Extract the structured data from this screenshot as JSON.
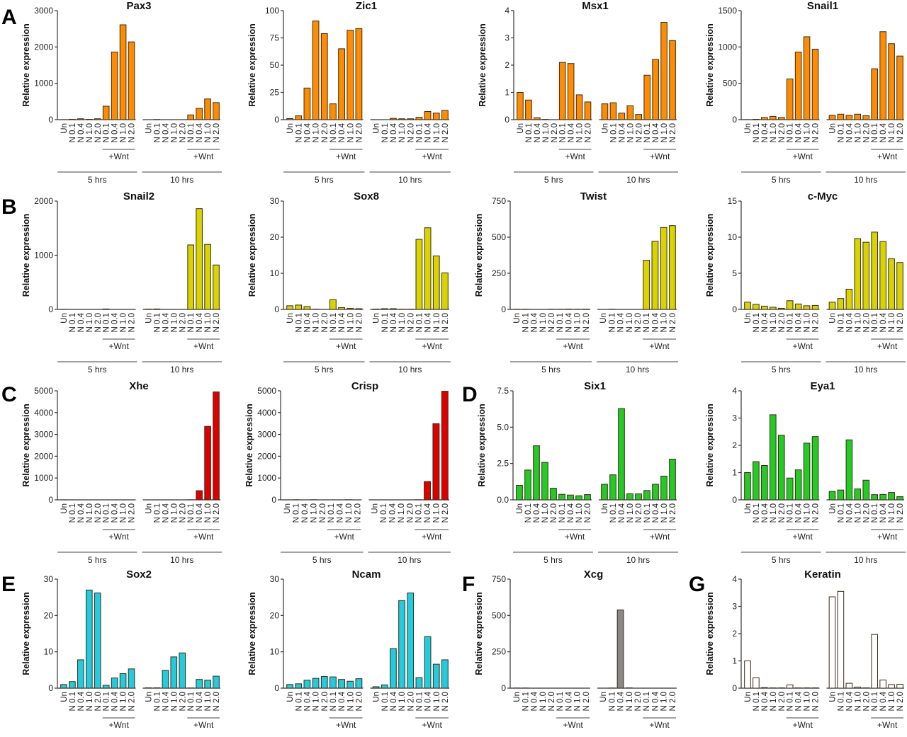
{
  "figure": {
    "panel_letters": [
      "A",
      "B",
      "C",
      "D",
      "E",
      "F",
      "G"
    ]
  },
  "labels": {
    "ylabel": "Relative expression",
    "wnt": "+Wnt",
    "group_5h": "5 hrs",
    "group_10h": "10 hrs"
  },
  "chart_data": [
    {
      "type": "bar",
      "panel": "A",
      "title": "Pax3",
      "ylabel": "Relative expression",
      "color": "#ff8c00",
      "ylim": [
        0,
        3000
      ],
      "yticks": [
        "0",
        "1000",
        "2000",
        "3000"
      ],
      "ytick_values": [
        0,
        1000,
        2000,
        3000
      ],
      "categories": [
        "Un",
        "N 0.1",
        "N 0.4",
        "N 1.0",
        "N 2.0",
        "N 0.1",
        "N 0.4",
        "N 1.0",
        "N 2.0",
        "Un",
        "N 0.1",
        "N 0.4",
        "N 1.0",
        "N 2.0",
        "N 0.1",
        "N 0.4",
        "N 1.0",
        "N 2.0"
      ],
      "groups": [
        "5 hrs",
        "10 hrs"
      ],
      "wnt_indices": [
        5,
        6,
        7,
        8,
        14,
        15,
        16,
        17
      ],
      "values": [
        1,
        10,
        25,
        10,
        25,
        370,
        1860,
        2610,
        2140,
        0,
        5,
        0,
        0,
        0,
        130,
        310,
        570,
        470
      ]
    },
    {
      "type": "bar",
      "panel": "",
      "title": "Zic1",
      "ylabel": "Relative expression",
      "color": "#ff8c00",
      "ylim": [
        0,
        100
      ],
      "yticks": [
        "0",
        "25",
        "50",
        "75",
        "100"
      ],
      "ytick_values": [
        0,
        25,
        50,
        75,
        100
      ],
      "categories": [
        "Un",
        "N 0.1",
        "N 0.4",
        "N 1.0",
        "N 2.0",
        "N 0.1",
        "N 0.4",
        "N 1.0",
        "N 2.0",
        "Un",
        "N 0.1",
        "N 0.4",
        "N 1.0",
        "N 2.0",
        "N 0.1",
        "N 0.4",
        "N 1.0",
        "N 2.0"
      ],
      "groups": [
        "5 hrs",
        "10 hrs"
      ],
      "wnt_indices": [
        5,
        6,
        7,
        8,
        14,
        15,
        16,
        17
      ],
      "values": [
        1,
        3.5,
        29,
        90.5,
        79,
        14.5,
        65,
        82,
        83.5,
        0,
        0,
        1.2,
        0.8,
        0.8,
        2.2,
        7.5,
        6,
        8.5
      ]
    },
    {
      "type": "bar",
      "panel": "",
      "title": "Msx1",
      "ylabel": "Relative expression",
      "color": "#ff8c00",
      "ylim": [
        0,
        4
      ],
      "yticks": [
        "0",
        "1",
        "2",
        "3",
        "4"
      ],
      "ytick_values": [
        0,
        1,
        2,
        3,
        4
      ],
      "categories": [
        "Un",
        "N 0.1",
        "N 0.4",
        "N 1.0",
        "N 2.0",
        "N 0.1",
        "N 0.4",
        "N 1.0",
        "N 2.0",
        "Un",
        "N 0.1",
        "N 0.4",
        "N 1.0",
        "N 2.0",
        "N 0.1",
        "N 0.4",
        "N 1.0",
        "N 2.0"
      ],
      "groups": [
        "5 hrs",
        "10 hrs"
      ],
      "wnt_indices": [
        5,
        6,
        7,
        8,
        14,
        15,
        16,
        17
      ],
      "values": [
        1.0,
        0.72,
        0.07,
        0.01,
        0,
        2.1,
        2.06,
        0.91,
        0.65,
        0.58,
        0.62,
        0.24,
        0.51,
        0.19,
        1.63,
        2.21,
        3.57,
        2.9
      ]
    },
    {
      "type": "bar",
      "panel": "",
      "title": "Snail1",
      "ylabel": "Relative expression",
      "color": "#ff8c00",
      "ylim": [
        0,
        1500
      ],
      "yticks": [
        "0",
        "500",
        "1000",
        "1500"
      ],
      "ytick_values": [
        0,
        500,
        1000,
        1500
      ],
      "categories": [
        "Un",
        "N 0.1",
        "N 0.4",
        "N 1.0",
        "N 2.0",
        "N 0.1",
        "N 0.4",
        "N 1.0",
        "N 2.0",
        "Un",
        "N 0.1",
        "N 0.4",
        "N 1.0",
        "N 2.0",
        "N 0.1",
        "N 0.4",
        "N 1.0",
        "N 2.0"
      ],
      "groups": [
        "5 hrs",
        "10 hrs"
      ],
      "wnt_indices": [
        5,
        6,
        7,
        8,
        14,
        15,
        16,
        17
      ],
      "values": [
        1,
        5,
        30,
        45,
        30,
        560,
        930,
        1140,
        970,
        60,
        75,
        60,
        75,
        55,
        700,
        1210,
        1045,
        875
      ]
    },
    {
      "type": "bar",
      "panel": "B",
      "title": "Snail2",
      "ylabel": "Relative expression",
      "color": "#d9d400",
      "ylim": [
        0,
        2000
      ],
      "yticks": [
        "0",
        "1000",
        "2000"
      ],
      "ytick_values": [
        0,
        1000,
        2000
      ],
      "categories": [
        "Un",
        "N 0.1",
        "N 0.4",
        "N 1.0",
        "N 2.0",
        "N 0.1",
        "N 0.4",
        "N 1.0",
        "N 2.0",
        "Un",
        "N 0.1",
        "N 0.4",
        "N 1.0",
        "N 2.0",
        "N 0.1",
        "N 0.4",
        "N 1.0",
        "N 2.0"
      ],
      "groups": [
        "5 hrs",
        "10 hrs"
      ],
      "wnt_indices": [
        5,
        6,
        7,
        8,
        14,
        15,
        16,
        17
      ],
      "values": [
        1,
        0,
        0,
        0,
        0,
        8,
        0,
        0,
        0,
        5,
        8,
        0,
        0,
        0,
        1190,
        1860,
        1200,
        820
      ]
    },
    {
      "type": "bar",
      "panel": "",
      "title": "Sox8",
      "ylabel": "Relative expression",
      "color": "#d9d400",
      "ylim": [
        0,
        30
      ],
      "yticks": [
        "0",
        "10",
        "20",
        "30"
      ],
      "ytick_values": [
        0,
        10,
        20,
        30
      ],
      "categories": [
        "Un",
        "N 0.1",
        "N 0.4",
        "N 1.0",
        "N 2.0",
        "N 0.1",
        "N 0.4",
        "N 1.0",
        "N 2.0",
        "Un",
        "N 0.1",
        "N 0.4",
        "N 1.0",
        "N 2.0",
        "N 0.1",
        "N 0.4",
        "N 1.0",
        "N 2.0"
      ],
      "groups": [
        "5 hrs",
        "10 hrs"
      ],
      "wnt_indices": [
        5,
        6,
        7,
        8,
        14,
        15,
        16,
        17
      ],
      "values": [
        1.0,
        1.2,
        0.8,
        0.05,
        0,
        2.7,
        0.5,
        0.3,
        0.2,
        0.1,
        0.2,
        0.2,
        0.05,
        0.05,
        19.4,
        22.6,
        14.8,
        10.1
      ]
    },
    {
      "type": "bar",
      "panel": "",
      "title": "Twist",
      "ylabel": "Relative expression",
      "color": "#d9d400",
      "ylim": [
        0,
        750
      ],
      "yticks": [
        "0",
        "250",
        "500",
        "750"
      ],
      "ytick_values": [
        0,
        250,
        500,
        750
      ],
      "categories": [
        "Un",
        "N 0.1",
        "N 0.4",
        "N 1.0",
        "N 2.0",
        "N 0.1",
        "N 0.4",
        "N 1.0",
        "N 2.0",
        "Un",
        "N 0.1",
        "N 0.4",
        "N 1.0",
        "N 2.0",
        "N 0.1",
        "N 0.4",
        "N 1.0",
        "N 2.0"
      ],
      "groups": [
        "5 hrs",
        "10 hrs"
      ],
      "wnt_indices": [
        5,
        6,
        7,
        8,
        14,
        15,
        16,
        17
      ],
      "values": [
        1,
        1,
        0,
        0,
        1,
        1,
        2,
        1,
        2,
        0,
        1,
        0,
        0,
        0,
        340,
        472,
        567,
        580
      ]
    },
    {
      "type": "bar",
      "panel": "",
      "title": "c-Myc",
      "ylabel": "Relative expression",
      "color": "#d9d400",
      "ylim": [
        0,
        15
      ],
      "yticks": [
        "0",
        "5",
        "10",
        "15"
      ],
      "ytick_values": [
        0,
        5,
        10,
        15
      ],
      "categories": [
        "Un",
        "N 0.1",
        "N 0.4",
        "N 1.0",
        "N 2.0",
        "N 0.1",
        "N 0.4",
        "N 1.0",
        "N 2.0",
        "Un",
        "N 0.1",
        "N 0.4",
        "N 1.0",
        "N 2.0",
        "N 0.1",
        "N 0.4",
        "N 1.0",
        "N 2.0"
      ],
      "groups": [
        "5 hrs",
        "10 hrs"
      ],
      "wnt_indices": [
        5,
        6,
        7,
        8,
        14,
        15,
        16,
        17
      ],
      "values": [
        1.0,
        0.7,
        0.45,
        0.3,
        0.15,
        1.2,
        0.75,
        0.5,
        0.55,
        1.0,
        1.5,
        2.8,
        9.8,
        9.3,
        10.7,
        9.4,
        7.0,
        6.5
      ]
    },
    {
      "type": "bar",
      "panel": "C",
      "title": "Xhe",
      "ylabel": "Relative expression",
      "color": "#dd0000",
      "ylim": [
        0,
        5000
      ],
      "yticks": [
        "0",
        "1000",
        "2000",
        "3000",
        "4000",
        "5000"
      ],
      "ytick_values": [
        0,
        1000,
        2000,
        3000,
        4000,
        5000
      ],
      "categories": [
        "Un",
        "N 0.1",
        "N 0.4",
        "N 1.0",
        "N 2.0",
        "N 0.1",
        "N 0.4",
        "N 1.0",
        "N 2.0",
        "Un",
        "N 0.1",
        "N 0.4",
        "N 1.0",
        "N 2.0",
        "N 0.1",
        "N 0.4",
        "N 1.0",
        "N 2.0"
      ],
      "groups": [
        "5 hrs",
        "10 hrs"
      ],
      "wnt_indices": [
        5,
        6,
        7,
        8,
        14,
        15,
        16,
        17
      ],
      "values": [
        1,
        0,
        0,
        0,
        0,
        0,
        0,
        0,
        0,
        0,
        0,
        0,
        0,
        0,
        5,
        420,
        3370,
        4950
      ]
    },
    {
      "type": "bar",
      "panel": "",
      "title": "Crisp",
      "ylabel": "Relative expression",
      "color": "#dd0000",
      "ylim": [
        0,
        5000
      ],
      "yticks": [
        "0",
        "1000",
        "2000",
        "3000",
        "4000",
        "5000"
      ],
      "ytick_values": [
        0,
        1000,
        2000,
        3000,
        4000,
        5000
      ],
      "categories": [
        "Un",
        "N 0.1",
        "N 0.4",
        "N 1.0",
        "N 2.0",
        "N 0.1",
        "N 0.4",
        "N 1.0",
        "N 2.0",
        "Un",
        "N 0.1",
        "N 0.4",
        "N 1.0",
        "N 2.0",
        "N 0.1",
        "N 0.4",
        "N 1.0",
        "N 2.0"
      ],
      "groups": [
        "5 hrs",
        "10 hrs"
      ],
      "wnt_indices": [
        5,
        6,
        7,
        8,
        14,
        15,
        16,
        17
      ],
      "values": [
        1,
        5,
        0,
        5,
        0,
        0,
        0,
        5,
        0,
        0,
        0,
        0,
        0,
        0,
        5,
        840,
        3490,
        4980
      ]
    },
    {
      "type": "bar",
      "panel": "D",
      "title": "Six1",
      "ylabel": "Relative expression",
      "color": "#22cc22",
      "ylim": [
        0,
        7.5
      ],
      "yticks": [
        "0.0",
        "2.5",
        "5.0",
        "7.5"
      ],
      "ytick_values": [
        0,
        2.5,
        5,
        7.5
      ],
      "categories": [
        "Un",
        "N 0.1",
        "N 0.4",
        "N 1.0",
        "N 2.0",
        "N 0.1",
        "N 0.4",
        "N 1.0",
        "N 2.0",
        "Un",
        "N 0.1",
        "N 0.4",
        "N 1.0",
        "N 2.0",
        "N 0.1",
        "N 0.4",
        "N 1.0",
        "N 2.0"
      ],
      "groups": [
        "5 hrs",
        "10 hrs"
      ],
      "wnt_indices": [
        5,
        6,
        7,
        8,
        14,
        15,
        16,
        17
      ],
      "values": [
        1.0,
        2.05,
        3.72,
        2.58,
        0.8,
        0.38,
        0.33,
        0.28,
        0.36,
        1.07,
        1.72,
        6.28,
        0.42,
        0.41,
        0.64,
        1.07,
        1.63,
        2.8
      ]
    },
    {
      "type": "bar",
      "panel": "",
      "title": "Eya1",
      "ylabel": "Relative expression",
      "color": "#22cc22",
      "ylim": [
        0,
        4
      ],
      "yticks": [
        "0",
        "1",
        "2",
        "3",
        "4"
      ],
      "ytick_values": [
        0,
        1,
        2,
        3,
        4
      ],
      "categories": [
        "Un",
        "N 0.1",
        "N 0.4",
        "N 1.0",
        "N 2.0",
        "N 0.1",
        "N 0.4",
        "N 1.0",
        "N 2.0",
        "Un",
        "N 0.1",
        "N 0.4",
        "N 1.0",
        "N 2.0",
        "N 0.1",
        "N 0.4",
        "N 1.0",
        "N 2.0"
      ],
      "groups": [
        "5 hrs",
        "10 hrs"
      ],
      "wnt_indices": [
        5,
        6,
        7,
        8,
        14,
        15,
        16,
        17
      ],
      "values": [
        1.0,
        1.4,
        1.26,
        3.12,
        2.37,
        0.8,
        1.1,
        2.08,
        2.32,
        0.31,
        0.36,
        2.2,
        0.4,
        0.72,
        0.19,
        0.2,
        0.27,
        0.12
      ]
    },
    {
      "type": "bar",
      "panel": "E",
      "title": "Sox2",
      "ylabel": "Relative expression",
      "color": "#22ccdd",
      "ylim": [
        0,
        30
      ],
      "yticks": [
        "0",
        "10",
        "20",
        "30"
      ],
      "ytick_values": [
        0,
        10,
        20,
        30
      ],
      "categories": [
        "Un",
        "N 0.1",
        "N 0.4",
        "N 1.0",
        "N 2.0",
        "N 0.1",
        "N 0.4",
        "N 1.0",
        "N 2.0",
        "Un",
        "N 0.1",
        "N 0.4",
        "N 1.0",
        "N 2.0",
        "N 0.1",
        "N 0.4",
        "N 1.0",
        "N 2.0"
      ],
      "groups": [
        "5 hrs",
        "10 hrs"
      ],
      "wnt_indices": [
        5,
        6,
        7,
        8,
        14,
        15,
        16,
        17
      ],
      "values": [
        1.0,
        1.8,
        7.8,
        27.0,
        26.2,
        0.8,
        2.8,
        4.0,
        5.3,
        0.1,
        0.1,
        4.9,
        8.6,
        9.7,
        0.05,
        2.4,
        2.2,
        3.3
      ]
    },
    {
      "type": "bar",
      "panel": "",
      "title": "Ncam",
      "ylabel": "Relative expression",
      "color": "#22ccdd",
      "ylim": [
        0,
        30
      ],
      "yticks": [
        "0",
        "10",
        "20",
        "30"
      ],
      "ytick_values": [
        0,
        10,
        20,
        30
      ],
      "categories": [
        "Un",
        "N 0.1",
        "N 0.4",
        "N 1.0",
        "N 2.0",
        "N 0.1",
        "N 0.4",
        "N 1.0",
        "N 2.0",
        "Un",
        "N 0.1",
        "N 0.4",
        "N 1.0",
        "N 2.0",
        "N 0.1",
        "N 0.4",
        "N 1.0",
        "N 2.0"
      ],
      "groups": [
        "5 hrs",
        "10 hrs"
      ],
      "wnt_indices": [
        5,
        6,
        7,
        8,
        14,
        15,
        16,
        17
      ],
      "values": [
        1.0,
        1.2,
        2.2,
        2.7,
        3.2,
        3.1,
        2.4,
        1.9,
        2.6,
        0.4,
        0.9,
        10.9,
        24.1,
        26.2,
        2.9,
        14.2,
        6.6,
        7.8
      ]
    },
    {
      "type": "bar",
      "panel": "F",
      "title": "Xcg",
      "ylabel": "Relative expression",
      "color": "#888888",
      "ylim": [
        0,
        750
      ],
      "yticks": [
        "0",
        "250",
        "500",
        "750"
      ],
      "ytick_values": [
        0,
        250,
        500,
        750
      ],
      "categories": [
        "Un",
        "N 0.1",
        "N 0.4",
        "N 1.0",
        "N 2.0",
        "N 0.1",
        "N 0.4",
        "N 1.0",
        "N 2.0",
        "Un",
        "N 0.1",
        "N 0.4",
        "N 1.0",
        "N 2.0",
        "N 0.1",
        "N 0.4",
        "N 1.0",
        "N 2.0"
      ],
      "groups": [
        "5 hrs",
        "10 hrs"
      ],
      "wnt_indices": [
        5,
        6,
        7,
        8,
        14,
        15,
        16,
        17
      ],
      "values": [
        1,
        1,
        0,
        0,
        0,
        0,
        0,
        0,
        0,
        0,
        1,
        538,
        2,
        0,
        0,
        0,
        0,
        0
      ]
    },
    {
      "type": "bar",
      "panel": "G",
      "title": "Keratin",
      "ylabel": "Relative expression",
      "color": "#ffffff",
      "ylim": [
        0,
        4
      ],
      "yticks": [
        "0",
        "1",
        "2",
        "3",
        "4"
      ],
      "ytick_values": [
        0,
        1,
        2,
        3,
        4
      ],
      "categories": [
        "Un",
        "N 0.1",
        "N 0.4",
        "N 1.0",
        "N 2.0",
        "N 0.1",
        "N 0.4",
        "N 1.0",
        "N 2.0",
        "Un",
        "N 0.1",
        "N 0.4",
        "N 1.0",
        "N 2.0",
        "N 0.1",
        "N 0.4",
        "N 1.0",
        "N 2.0"
      ],
      "groups": [
        "5 hrs",
        "10 hrs"
      ],
      "wnt_indices": [
        5,
        6,
        7,
        8,
        14,
        15,
        16,
        17
      ],
      "values": [
        1.0,
        0.38,
        0.02,
        0.01,
        0.01,
        0.12,
        0.01,
        0.01,
        0.01,
        3.35,
        3.55,
        0.18,
        0.04,
        0.01,
        1.97,
        0.3,
        0.13,
        0.14
      ]
    }
  ]
}
